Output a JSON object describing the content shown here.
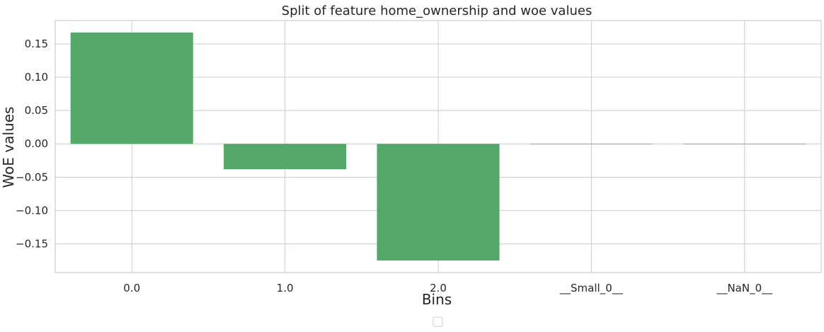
{
  "chart_data": {
    "type": "bar",
    "title": "Split of feature home_ownership and woe values",
    "xlabel": "Bins",
    "ylabel": "WoE values",
    "categories": [
      "0.0",
      "1.0",
      "2.0",
      "__Small_0__",
      "__NaN_0__"
    ],
    "values": [
      0.167,
      -0.038,
      -0.175,
      0.0,
      0.0
    ],
    "ylim": [
      -0.193,
      0.185
    ],
    "yticks": [
      0.15,
      0.1,
      0.05,
      0.0,
      -0.05,
      -0.1,
      -0.15
    ],
    "ytick_labels": [
      "0.15",
      "0.10",
      "0.05",
      "0.00",
      "−0.05",
      "−0.10",
      "−0.15"
    ],
    "grid": true,
    "legend": "bottom-center (empty)",
    "colors": {
      "bar": "#55a868",
      "grid": "#cccccc",
      "axis": "#cccccc",
      "text": "#262626"
    }
  }
}
